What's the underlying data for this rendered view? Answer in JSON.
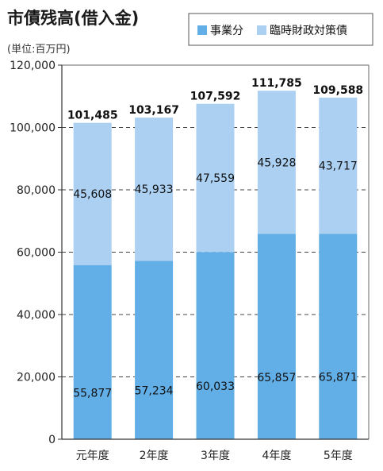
{
  "title": "市債残高(借入金)",
  "unit": "(単位:百万円)",
  "legend": {
    "position": "top-right",
    "items": [
      {
        "label": "事業分",
        "color": "#62aee6"
      },
      {
        "label": "臨時財政対策債",
        "color": "#acd0f2"
      }
    ]
  },
  "chart_data": {
    "type": "bar",
    "stacked": true,
    "categories": [
      "元年度",
      "2年度",
      "3年度",
      "4年度",
      "5年度"
    ],
    "series": [
      {
        "name": "事業分",
        "color": "#62aee6",
        "values": [
          55877,
          57234,
          60033,
          65857,
          65871
        ],
        "labels": [
          "55,877",
          "57,234",
          "60,033",
          "65,857",
          "65,871"
        ]
      },
      {
        "name": "臨時財政対策債",
        "color": "#acd0f2",
        "values": [
          45608,
          45933,
          47559,
          45928,
          43717
        ],
        "labels": [
          "45,608",
          "45,933",
          "47,559",
          "45,928",
          "43,717"
        ]
      }
    ],
    "totals": [
      101485,
      103167,
      107592,
      111785,
      109588
    ],
    "total_labels": [
      "101,485",
      "103,167",
      "107,592",
      "111,785",
      "109,588"
    ],
    "ylim": [
      0,
      120000
    ],
    "yticks": [
      0,
      20000,
      40000,
      60000,
      80000,
      100000,
      120000
    ],
    "ytick_labels": [
      "0",
      "20,000",
      "40,000",
      "60,000",
      "80,000",
      "100,000",
      "120,000"
    ],
    "grid": "dashed horizontal"
  }
}
